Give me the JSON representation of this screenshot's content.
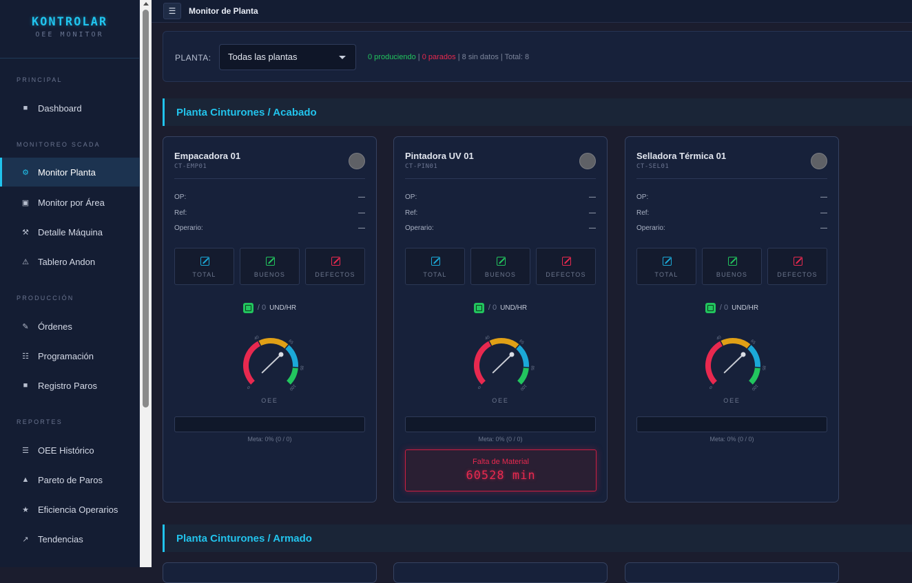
{
  "brand": {
    "title": "KONTROLAR",
    "subtitle": "OEE MONITOR"
  },
  "topbar": {
    "menu_icon": "hamburger-icon",
    "title": "Monitor de Planta"
  },
  "sidebar": {
    "sections": [
      {
        "label": "PRINCIPAL",
        "items": [
          {
            "label": "Dashboard",
            "icon": "square-icon",
            "glyph": "■"
          }
        ]
      },
      {
        "label": "MONITOREO SCADA",
        "items": [
          {
            "label": "Monitor Planta",
            "icon": "gear-icon",
            "glyph": "⚙",
            "active": true
          },
          {
            "label": "Monitor por Área",
            "icon": "frame-icon",
            "glyph": "▣"
          },
          {
            "label": "Detalle Máquina",
            "icon": "tools-icon",
            "glyph": "⚒"
          },
          {
            "label": "Tablero Andon",
            "icon": "warning-icon",
            "glyph": "⚠"
          }
        ]
      },
      {
        "label": "PRODUCCIÓN",
        "items": [
          {
            "label": "Órdenes",
            "icon": "pencil-icon",
            "glyph": "✎"
          },
          {
            "label": "Programación",
            "icon": "list-icon",
            "glyph": "☷"
          },
          {
            "label": "Registro Paros",
            "icon": "square-icon",
            "glyph": "■"
          }
        ]
      },
      {
        "label": "REPORTES",
        "items": [
          {
            "label": "OEE Histórico",
            "icon": "menu-icon",
            "glyph": "☰"
          },
          {
            "label": "Pareto de Paros",
            "icon": "triangle-icon",
            "glyph": "▲"
          },
          {
            "label": "Eficiencia Operarios",
            "icon": "star-icon",
            "glyph": "★"
          },
          {
            "label": "Tendencias",
            "icon": "trend-arrow-icon",
            "glyph": "↗"
          }
        ]
      }
    ]
  },
  "filter": {
    "label": "PLANTA:",
    "selected": "Todas las plantas",
    "summary": {
      "producing": "0 produciendo",
      "stopped": "0 parados",
      "no_data": "8 sin datos",
      "total": "Total: 8"
    }
  },
  "colors": {
    "accent": "#20c4ee",
    "green": "#22c55e",
    "red": "#e8294f",
    "orange": "#e0a016",
    "blue": "#1ba9d8"
  },
  "sections": [
    {
      "title": "Planta Cinturones / Acabado",
      "machines": [
        {
          "name": "Empacadora 01",
          "code": "CT-EMP01",
          "op_label": "OP:",
          "op": "—",
          "ref_label": "Ref:",
          "ref": "—",
          "operator_label": "Operario:",
          "operator": "—",
          "counters": {
            "total": "TOTAL",
            "good": "BUENOS",
            "defects": "DEFECTOS"
          },
          "rate": {
            "value": "0",
            "unit": "UND/HR"
          },
          "gauge": {
            "label": "OEE",
            "value": 0,
            "ticks": [
              "0",
              "40",
              "65",
              "85",
              "100"
            ]
          },
          "goal_progress": 0,
          "goal_text": "Meta: 0% (0 / 0)",
          "alarm": null
        },
        {
          "name": "Pintadora UV 01",
          "code": "CT-PIN01",
          "op_label": "OP:",
          "op": "—",
          "ref_label": "Ref:",
          "ref": "—",
          "operator_label": "Operario:",
          "operator": "—",
          "counters": {
            "total": "TOTAL",
            "good": "BUENOS",
            "defects": "DEFECTOS"
          },
          "rate": {
            "value": "0",
            "unit": "UND/HR"
          },
          "gauge": {
            "label": "OEE",
            "value": 0,
            "ticks": [
              "0",
              "40",
              "65",
              "85",
              "100"
            ]
          },
          "goal_progress": 0,
          "goal_text": "Meta: 0% (0 / 0)",
          "alarm": {
            "reason": "Falta de Material",
            "duration": "60528 min"
          }
        },
        {
          "name": "Selladora Térmica 01",
          "code": "CT-SEL01",
          "op_label": "OP:",
          "op": "—",
          "ref_label": "Ref:",
          "ref": "—",
          "operator_label": "Operario:",
          "operator": "—",
          "counters": {
            "total": "TOTAL",
            "good": "BUENOS",
            "defects": "DEFECTOS"
          },
          "rate": {
            "value": "0",
            "unit": "UND/HR"
          },
          "gauge": {
            "label": "OEE",
            "value": 0,
            "ticks": [
              "0",
              "40",
              "65",
              "85",
              "100"
            ]
          },
          "goal_progress": 0,
          "goal_text": "Meta: 0% (0 / 0)",
          "alarm": null
        }
      ]
    },
    {
      "title": "Planta Cinturones / Armado",
      "machines": []
    }
  ]
}
